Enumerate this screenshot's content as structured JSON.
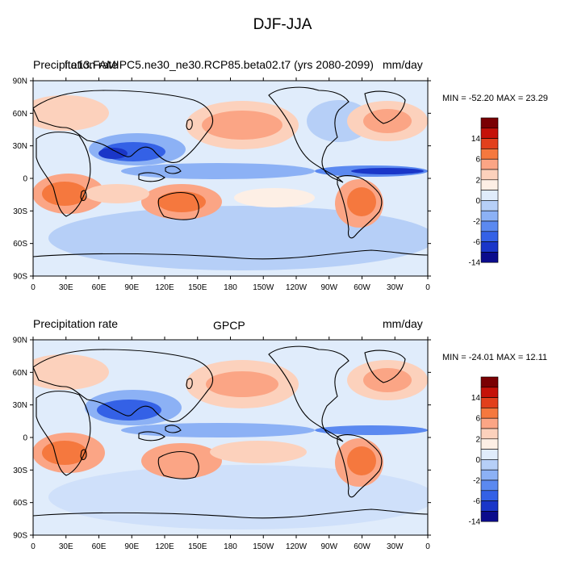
{
  "title": "DJF-JJA",
  "colorbar": {
    "labels": [
      "14",
      "6",
      "2",
      "0",
      "-2",
      "-6",
      "-14"
    ],
    "colors": [
      "#7a0003",
      "#c51209",
      "#e2401c",
      "#f5783e",
      "#fba585",
      "#fcd1bc",
      "#fdefe5",
      "#e0ecfb",
      "#b6cff7",
      "#8cb1f5",
      "#5b89f0",
      "#3461e6",
      "#1a36c8",
      "#0b0c8c"
    ]
  },
  "axes": {
    "lat_ticks": [
      "90N",
      "60N",
      "30N",
      "0",
      "30S",
      "60S",
      "90S"
    ],
    "lon_ticks": [
      "0",
      "30E",
      "60E",
      "90E",
      "120E",
      "150E",
      "180",
      "150W",
      "120W",
      "90W",
      "60W",
      "30W",
      "0"
    ]
  },
  "panels": [
    {
      "left": "Precipitation rate",
      "center": "f.e13.FAMIPC5.ne30_ne30.RCP85.beta02.t7 (yrs 2080-2099)",
      "right": "mm/day",
      "minmax": "MIN = -52.20 MAX =  23.29"
    },
    {
      "left": "Precipitation rate",
      "center": "GPCP",
      "right": "mm/day",
      "minmax": "MIN = -24.01 MAX =  12.11"
    }
  ]
}
